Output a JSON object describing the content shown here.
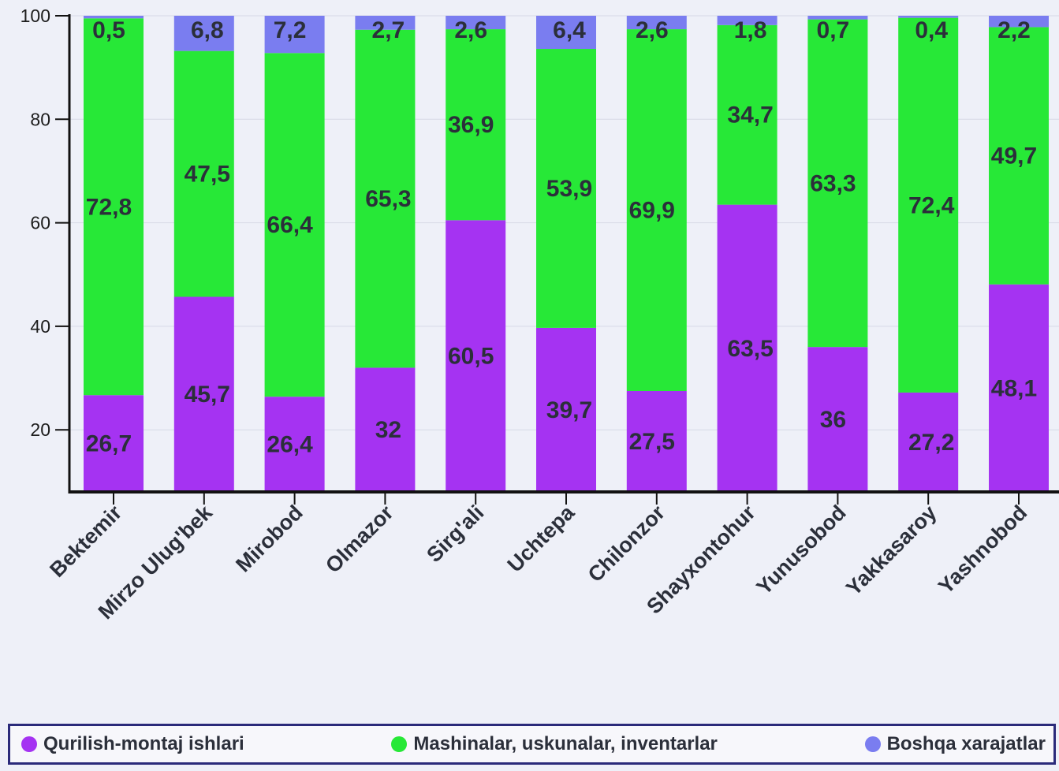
{
  "chart_data": {
    "type": "bar",
    "stacked": true,
    "categories": [
      "Bektemir",
      "Mirzo Ulug'bek",
      "Mirobod",
      "Olmazor",
      "Sirg'ali",
      "Uchtepa",
      "Chilonzor",
      "Shayxontohur",
      "Yunusobod",
      "Yakkasaroy",
      "Yashnobod"
    ],
    "series": [
      {
        "name": "Qurilish-montaj ishlari",
        "color": "#a533f2",
        "values": [
          26.7,
          45.7,
          26.4,
          32,
          60.5,
          39.7,
          27.5,
          63.5,
          36,
          27.2,
          48.1
        ],
        "labels": [
          "26,7",
          "45,7",
          "26,4",
          "32",
          "60,5",
          "39,7",
          "27,5",
          "63,5",
          "36",
          "27,2",
          "48,1"
        ]
      },
      {
        "name": "Mashinalar, uskunalar, inventarlar",
        "color": "#27e837",
        "values": [
          72.8,
          47.5,
          66.4,
          65.3,
          36.9,
          53.9,
          69.9,
          34.7,
          63.3,
          72.4,
          49.7
        ],
        "labels": [
          "72,8",
          "47,5",
          "66,4",
          "65,3",
          "36,9",
          "53,9",
          "69,9",
          "34,7",
          "63,3",
          "72,4",
          "49,7"
        ]
      },
      {
        "name": "Boshqa xarajatlar",
        "color": "#7a7df0",
        "values": [
          0.5,
          6.8,
          7.2,
          2.7,
          2.6,
          6.4,
          2.6,
          1.8,
          0.7,
          0.4,
          2.2
        ],
        "labels": [
          "0,5",
          "6,8",
          "7,2",
          "2,7",
          "2,6",
          "6,4",
          "2,6",
          "1,8",
          "0,7",
          "0,4",
          "2,2"
        ]
      }
    ],
    "ylim": [
      8,
      100
    ],
    "yticks": [
      20,
      40,
      60,
      80,
      100
    ],
    "grid": true,
    "legend_position": "bottom",
    "title": "",
    "xlabel": "",
    "ylabel": ""
  }
}
